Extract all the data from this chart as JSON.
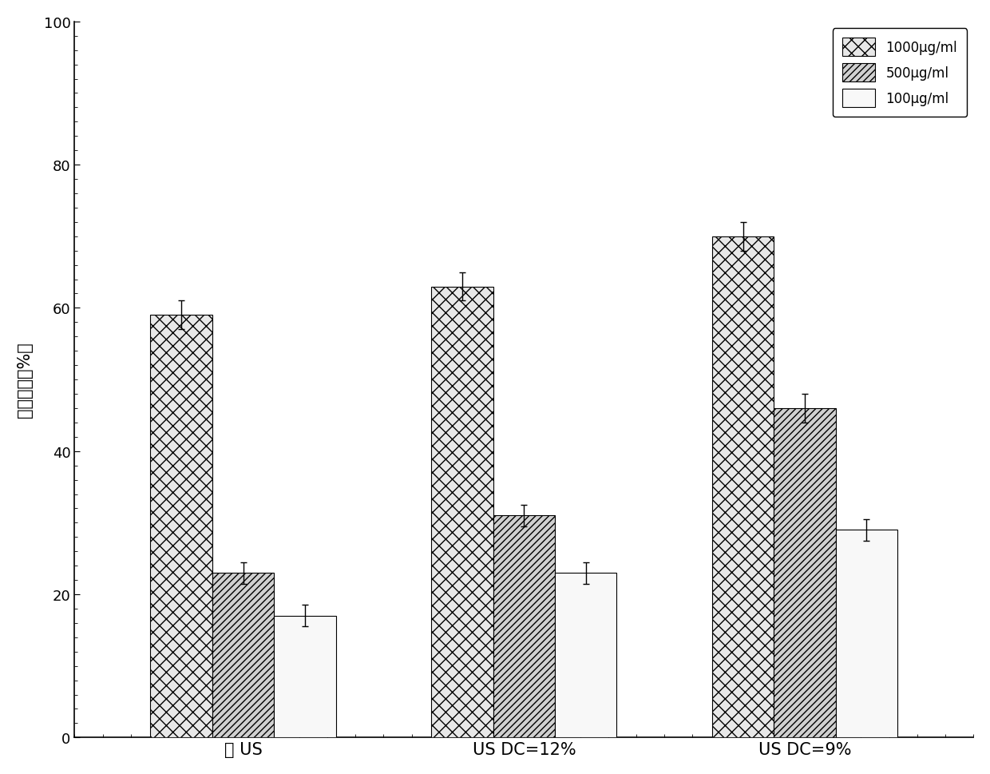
{
  "groups": [
    "无 US",
    "US DC=12%",
    "US DC=9%"
  ],
  "series": [
    {
      "label": "1000μg/ml",
      "values": [
        59,
        63,
        70
      ],
      "errors": [
        2.0,
        2.0,
        2.0
      ]
    },
    {
      "label": "500μg/ml",
      "values": [
        23,
        31,
        46
      ],
      "errors": [
        1.5,
        1.5,
        2.0
      ]
    },
    {
      "label": "100μg/ml",
      "values": [
        17,
        23,
        29
      ],
      "errors": [
        1.5,
        1.5,
        1.5
      ]
    }
  ],
  "ylabel": "细胞死亡（%）",
  "ylim": [
    0,
    100
  ],
  "yticks": [
    0,
    20,
    40,
    60,
    80,
    100
  ],
  "bar_width": 0.22,
  "background_color": "#ffffff",
  "hatch_patterns": [
    "xx",
    "////",
    ""
  ],
  "bar_facecolors": [
    "#e8e8e8",
    "#d0d0d0",
    "#f8f8f8"
  ],
  "bar_edgecolor": "#000000",
  "axis_fontsize": 15,
  "tick_fontsize": 13,
  "legend_fontsize": 12
}
